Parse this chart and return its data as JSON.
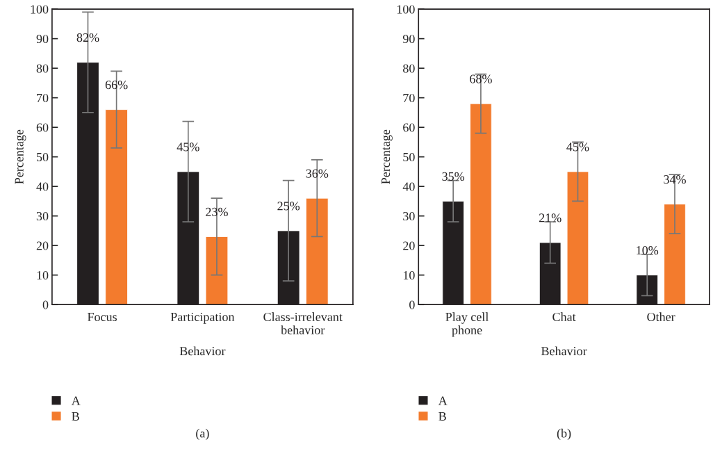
{
  "chart_data": [
    {
      "type": "bar",
      "xlabel": "Behavior",
      "ylabel": "Percentage",
      "categories": [
        "Focus",
        "Participation",
        "Class-irrelevant\nbehavior"
      ],
      "ylim": [
        0,
        100
      ],
      "yticks": [
        0,
        10,
        20,
        30,
        40,
        50,
        60,
        70,
        80,
        90,
        100
      ],
      "grid": false,
      "legend": "bottom left",
      "series": [
        {
          "name": "A",
          "color": "#231f20",
          "values": [
            82,
            45,
            25
          ],
          "errors": [
            [
              65,
              99
            ],
            [
              28,
              62
            ],
            [
              8,
              42
            ]
          ],
          "value_labels": [
            "82%",
            "45%",
            "25%"
          ]
        },
        {
          "name": "B",
          "color": "#f37b2d",
          "values": [
            66,
            23,
            36
          ],
          "errors": [
            [
              53,
              79
            ],
            [
              10,
              36
            ],
            [
              23,
              49
            ]
          ],
          "value_labels": [
            "66%",
            "23%",
            "36%"
          ]
        }
      ],
      "annotations": [
        "(a)"
      ]
    },
    {
      "type": "bar",
      "xlabel": "Behavior",
      "ylabel": "Percentage",
      "categories": [
        "Play cell\nphone",
        "Chat",
        "Other"
      ],
      "ylim": [
        0,
        100
      ],
      "yticks": [
        0,
        10,
        20,
        30,
        40,
        50,
        60,
        70,
        80,
        90,
        100
      ],
      "grid": false,
      "legend": "bottom left",
      "series": [
        {
          "name": "A",
          "color": "#231f20",
          "values": [
            35,
            21,
            10
          ],
          "errors": [
            [
              28,
              42
            ],
            [
              14,
              28
            ],
            [
              3,
              17
            ]
          ],
          "value_labels": [
            "35%",
            "21%",
            "10%"
          ]
        },
        {
          "name": "B",
          "color": "#f37b2d",
          "values": [
            68,
            45,
            34
          ],
          "errors": [
            [
              58,
              78
            ],
            [
              35,
              55
            ],
            [
              24,
              44
            ]
          ],
          "value_labels": [
            "68%",
            "45%",
            "34%"
          ]
        }
      ],
      "annotations": [
        "(b)"
      ]
    }
  ]
}
